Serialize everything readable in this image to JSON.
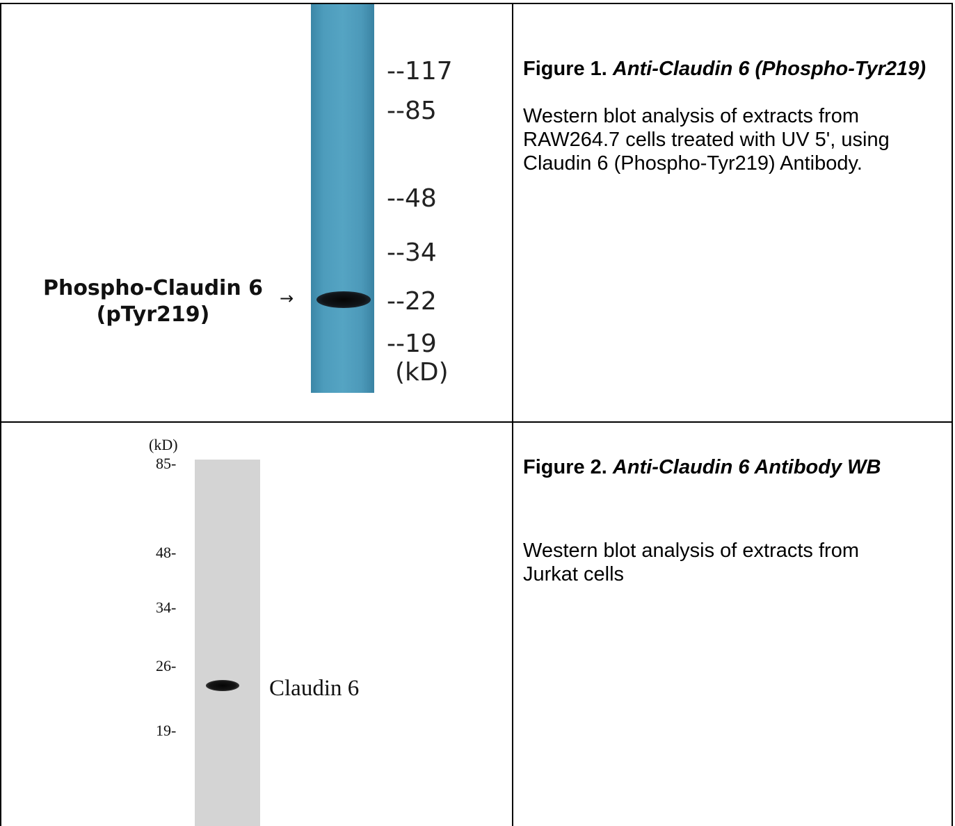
{
  "figure1": {
    "title_prefix": "Figure 1.",
    "title_name": "Anti-Claudin 6 (Phospho-Tyr219)",
    "description": "Western blot analysis of extracts from RAW264.7 cells treated with UV 5', using Claudin 6 (Phospho-Tyr219) Antibody.",
    "blot": {
      "band_label_line1": "Phospho-Claudin 6",
      "band_label_line2": "(pTyr219)",
      "arrow": "→",
      "markers": [
        "--117",
        "--85",
        "--48",
        "--34",
        "--22",
        "--19"
      ],
      "unit": "(kD)",
      "lane_color": "#4d9cbc"
    }
  },
  "figure2": {
    "title_prefix": "Figure 2.",
    "title_name": "Anti-Claudin 6 Antibody WB",
    "description": "Western blot analysis of extracts from Jurkat cells",
    "blot": {
      "unit": "(kD)",
      "markers": [
        "85-",
        "48-",
        "34-",
        "26-",
        "19-"
      ],
      "band_label": "Claudin 6",
      "lane_color": "#d4d4d4"
    }
  }
}
